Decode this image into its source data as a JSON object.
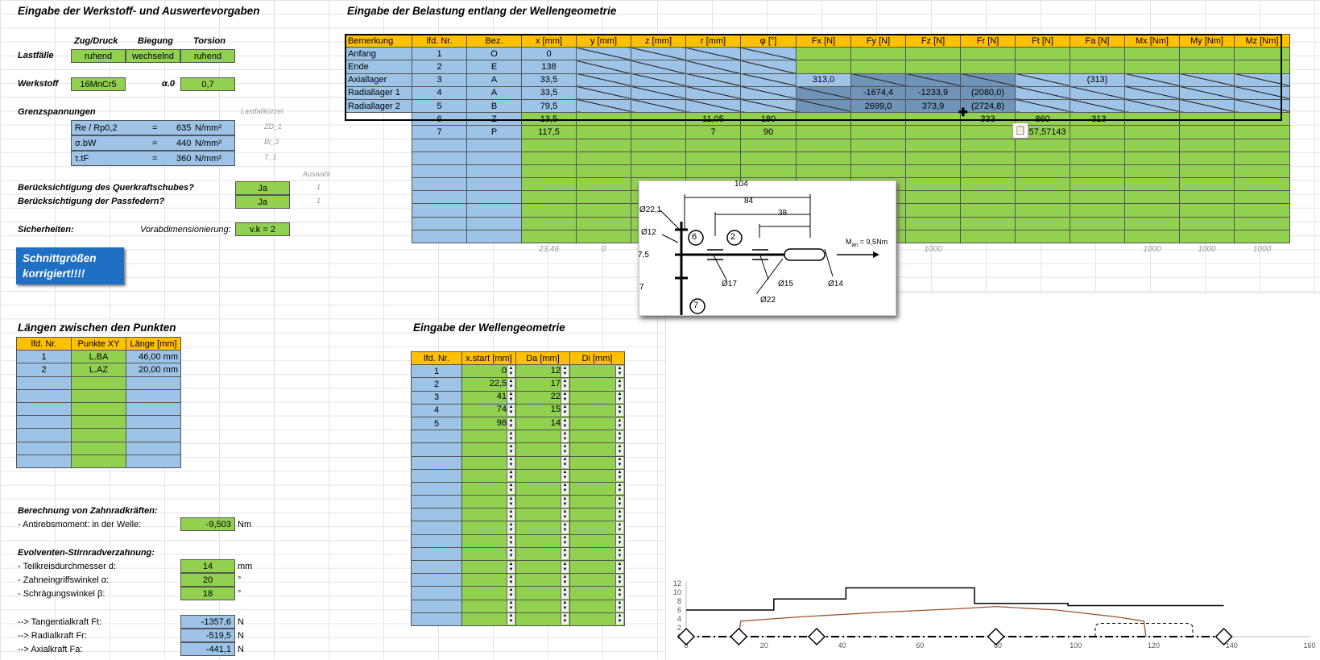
{
  "headings": {
    "material": "Eingabe der Werkstoff- und Auswertevorgaben",
    "load": "Eingabe der Belastung entlang der Wellengeometrie",
    "lengths": "Längen zwischen den Punkten",
    "geometry": "Eingabe der Wellengeometrie"
  },
  "loadcases": {
    "label": "Lastfälle",
    "headers": [
      "Zug/Druck",
      "Biegung",
      "Torsion"
    ],
    "values": [
      "ruhend",
      "wechselnd",
      "ruhend"
    ]
  },
  "material": {
    "label": "Werkstoff",
    "value": "16MnCr5",
    "alpha_label": "α.0",
    "alpha_value": "0,7"
  },
  "limits": {
    "label": "Grenzspannungen",
    "kuerzel_label": "Lastfallkürzel",
    "rows": [
      {
        "name": "Re / Rp0,2",
        "eq": "=",
        "value": "635",
        "unit": "N/mm²",
        "code": "ZD_1"
      },
      {
        "name": "σ.bW",
        "eq": "=",
        "value": "440",
        "unit": "N/mm²",
        "code": "Bi_3"
      },
      {
        "name": "τ.tF",
        "eq": "=",
        "value": "360",
        "unit": "N/mm²",
        "code": "T_1"
      }
    ]
  },
  "options": {
    "auswahl_label": "Auswahl",
    "rows": [
      {
        "label": "Berücksichtigung des Querkraftschubes?",
        "value": "Ja",
        "code": "1"
      },
      {
        "label": "Berücksichtigung der Passfedern?",
        "value": "Ja",
        "code": "1"
      }
    ]
  },
  "safety": {
    "label": "Sicherheiten:",
    "pre_label": "Vorabdimensionierung:",
    "value": "v.k = 2"
  },
  "button": {
    "line1": "Schnittgrößen",
    "line2": "korrigiert!!!!"
  },
  "load_table": {
    "headers": [
      "Bemerkung",
      "lfd. Nr.",
      "Bez.",
      "x [mm]",
      "y [mm]",
      "z [mm]",
      "r [mm]",
      "φ [°]",
      "Fx [N]",
      "Fy [N]",
      "Fz [N]",
      "Fr [N]",
      "Ft [N]",
      "Fa [N]",
      "Mx [Nm]",
      "My [Nm]",
      "Mz [Nm]"
    ],
    "rows": [
      [
        "Anfang",
        "1",
        "O",
        "0",
        "",
        "",
        "",
        "",
        "",
        "",
        "",
        "",
        "",
        "",
        "",
        "",
        ""
      ],
      [
        "Ende",
        "2",
        "E",
        "138",
        "",
        "",
        "",
        "",
        "",
        "",
        "",
        "",
        "",
        "",
        "",
        "",
        ""
      ],
      [
        "Axiallager",
        "3",
        "A",
        "33,5",
        "",
        "",
        "",
        "",
        "313,0",
        "",
        "",
        "",
        "",
        "(313)",
        "",
        "",
        ""
      ],
      [
        "Radiallager 1",
        "4",
        "A",
        "33,5",
        "",
        "",
        "",
        "",
        "",
        "-1674,4",
        "-1233,9",
        "(2080,0)",
        "",
        "",
        "",
        "",
        ""
      ],
      [
        "Radiallager 2",
        "5",
        "B",
        "79,5",
        "",
        "",
        "",
        "",
        "",
        "2699,0",
        "373,9",
        "(2724,8)",
        "",
        "",
        "",
        "",
        ""
      ],
      [
        "",
        "6",
        "Z",
        "13,5",
        "",
        "",
        "11,05",
        "180",
        "",
        "",
        "",
        "333",
        "860",
        "-313",
        "",
        "",
        ""
      ],
      [
        "",
        "7",
        "P",
        "117,5",
        "",
        "",
        "7",
        "90",
        "",
        "",
        "",
        "",
        "1357,57143",
        "",
        "",
        "",
        ""
      ]
    ],
    "footer": [
      "",
      "",
      "",
      "23,46",
      "0",
      "",
      "",
      "",
      "",
      "",
      "1000",
      "",
      "",
      "",
      "1000",
      "1000",
      "1000"
    ]
  },
  "lengths_table": {
    "headers": [
      "lfd. Nr.",
      "Punkte XY",
      "Länge [mm]"
    ],
    "rows": [
      [
        "1",
        "L.BA",
        "46,00 mm"
      ],
      [
        "2",
        "L.AZ",
        "20,00 mm"
      ]
    ]
  },
  "geometry_table": {
    "headers": [
      "lfd. Nr.",
      "x.start [mm]",
      "Da [mm]",
      "Di [mm]"
    ],
    "rows": [
      [
        "1",
        "0",
        "12",
        ""
      ],
      [
        "2",
        "22,5",
        "17",
        ""
      ],
      [
        "3",
        "41",
        "22",
        ""
      ],
      [
        "4",
        "74",
        "15",
        ""
      ],
      [
        "5",
        "98",
        "14",
        ""
      ]
    ]
  },
  "gear": {
    "title": "Berechnung von Zahnradkräften:",
    "moment_label": "- Antirebsmoment: in der Welle:",
    "moment_value": "-9,503",
    "moment_unit": "Nm",
    "evo_title": "Evolventen-Stirnradverzahnung:",
    "params": [
      {
        "label": "- Teilkreisdurchmesser d:",
        "value": "14",
        "unit": "mm"
      },
      {
        "label": "- Zahneingriffswinkel α:",
        "value": "20",
        "unit": "°"
      },
      {
        "label": "- Schrägungswinkel β:",
        "value": "18",
        "unit": "°"
      }
    ],
    "forces": [
      {
        "label": "--> Tangentialkraft Ft:",
        "value": "-1357,6",
        "unit": "N"
      },
      {
        "label": "--> Radialkraft Fr:",
        "value": "-519,5",
        "unit": "N"
      },
      {
        "label": "--> Axialkraft Fa:",
        "value": "-441,1",
        "unit": "N"
      }
    ]
  },
  "sketch": {
    "dims": [
      "104",
      "84",
      "38"
    ],
    "diams": [
      "Ø22,1",
      "Ø12",
      "7,5",
      "7",
      "Ø17",
      "Ø15",
      "Ø14",
      "Ø22"
    ],
    "markers": [
      "6",
      "2",
      "7"
    ],
    "moment": "M",
    "moment_sub": "an",
    "moment_rest": " = 9,5Nm"
  },
  "chart_data": {
    "type": "line",
    "xlim": [
      0,
      160
    ],
    "ylim": [
      0,
      12
    ],
    "x_ticks": [
      "0",
      "20",
      "40",
      "60",
      "80",
      "100",
      "120",
      "140",
      "160"
    ],
    "y_ticks": [
      "0",
      "2",
      "4",
      "6",
      "8",
      "10",
      "12"
    ],
    "series": [
      {
        "values": [
          [
            0,
            6
          ],
          [
            22.5,
            6
          ],
          [
            22.5,
            8.5
          ],
          [
            41,
            8.5
          ],
          [
            41,
            11
          ],
          [
            74,
            11
          ],
          [
            74,
            7.5
          ],
          [
            98,
            7.5
          ],
          [
            98,
            7
          ],
          [
            138,
            7
          ]
        ]
      },
      {
        "values": [
          [
            13.5,
            0
          ],
          [
            14,
            3.5
          ],
          [
            30,
            4.5
          ],
          [
            50,
            5.5
          ],
          [
            70,
            6.3
          ],
          [
            79.5,
            6.8
          ],
          [
            95,
            6
          ],
          [
            110,
            4.5
          ],
          [
            117.5,
            3.5
          ],
          [
            118,
            0
          ]
        ]
      }
    ],
    "markers_x": [
      0,
      13.5,
      33.5,
      79.5,
      138
    ],
    "keyway_x": [
      105,
      130
    ],
    "grid": false,
    "legend": "none"
  }
}
